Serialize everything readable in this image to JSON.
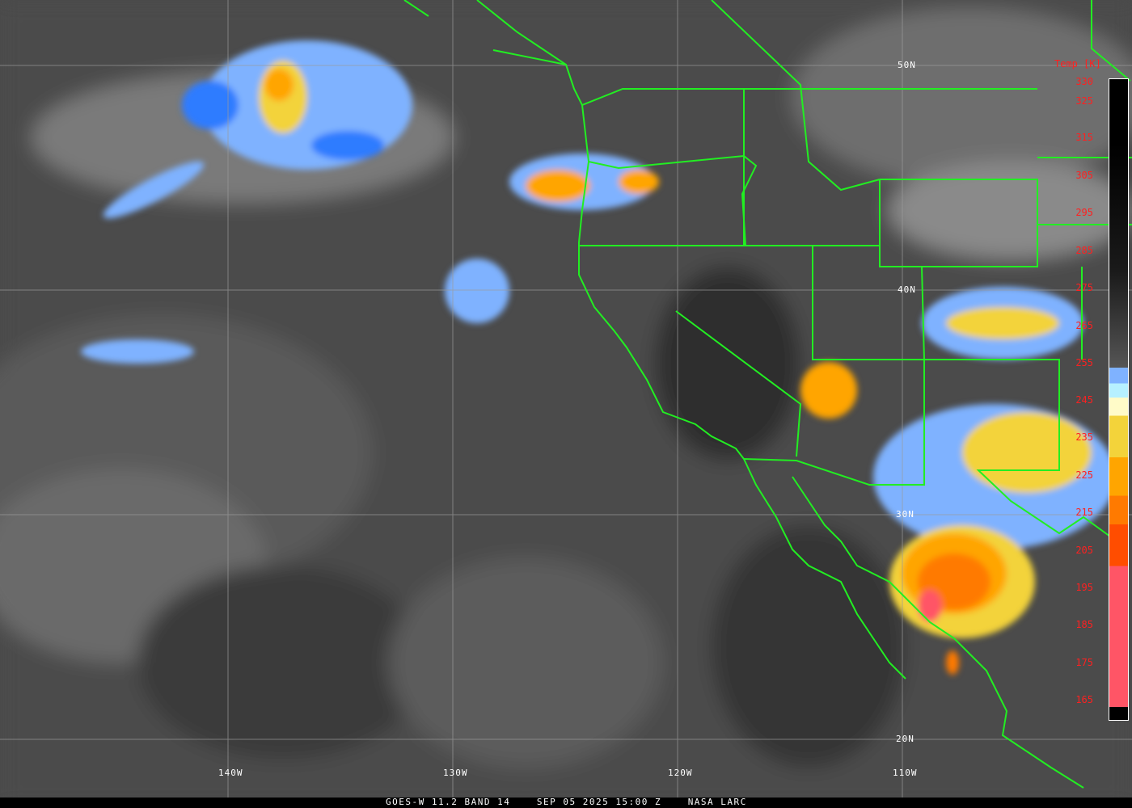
{
  "map": {
    "latitude_labels": [
      "50N",
      "40N",
      "30N",
      "20N"
    ],
    "longitude_labels": [
      "140W",
      "130W",
      "120W",
      "110W"
    ]
  },
  "legend": {
    "title": "Temp [K]",
    "ticks": [
      "330",
      "325",
      "315",
      "305",
      "295",
      "285",
      "275",
      "265",
      "255",
      "245",
      "235",
      "225",
      "215",
      "205",
      "195",
      "185",
      "175",
      "165"
    ]
  },
  "caption": {
    "satellite": "GOES-W 11.2 BAND 14",
    "datetime": "SEP 05 2025 15:00 Z",
    "source": "NASA LARC"
  },
  "colors": {
    "borders": "#22ee22",
    "labels_legend": "#ff2020",
    "cold_cloud_blue": "#2f7bff",
    "yellow": "#f3d33a",
    "orange": "#ffa500",
    "red": "#ff5566"
  }
}
